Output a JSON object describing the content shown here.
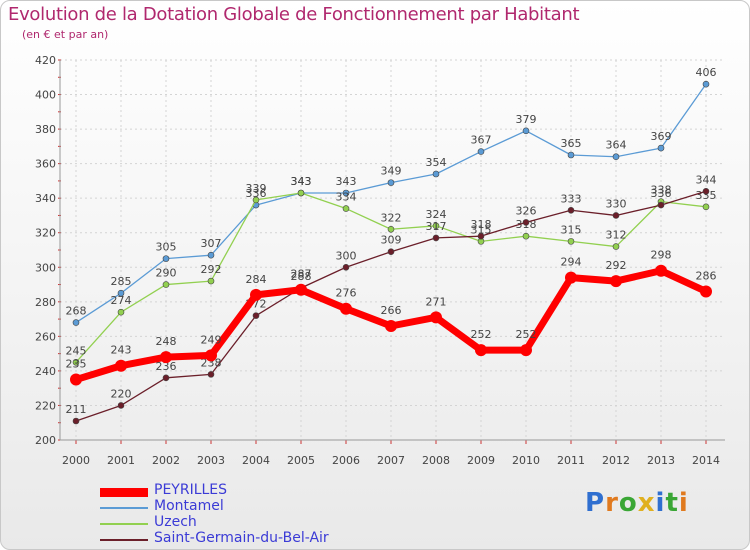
{
  "title": "Evolution de la Dotation Globale de Fonctionnement par Habitant",
  "subtitle": "(en € et par an)",
  "logo": "Proxiti",
  "chart_data": {
    "type": "line",
    "title": "Evolution de la Dotation Globale de Fonctionnement par Habitant",
    "subtitle": "(en € et par an)",
    "xlabel": "",
    "ylabel": "",
    "ylim": [
      200,
      420
    ],
    "yticks": [
      200,
      220,
      240,
      260,
      280,
      300,
      320,
      340,
      360,
      380,
      400,
      420
    ],
    "grid": true,
    "legend_position": "bottom-left",
    "x": [
      "2000",
      "2001",
      "2002",
      "2003",
      "2004",
      "2005",
      "2006",
      "2007",
      "2008",
      "2009",
      "2010",
      "2011",
      "2012",
      "2013",
      "2014"
    ],
    "series": [
      {
        "name": "Montamel",
        "color": "#5b9bd5",
        "values": [
          268,
          285,
          305,
          307,
          336,
          343,
          343,
          349,
          354,
          367,
          379,
          365,
          364,
          369,
          406
        ]
      },
      {
        "name": "Uzech",
        "color": "#92d050",
        "values": [
          245,
          274,
          290,
          292,
          339,
          343,
          334,
          322,
          324,
          315,
          318,
          315,
          312,
          338,
          335
        ]
      },
      {
        "name": "Saint-Germain-du-Bel-Air",
        "color": "#6b1f2a",
        "values": [
          211,
          220,
          236,
          238,
          272,
          288,
          300,
          309,
          317,
          318,
          326,
          333,
          330,
          336,
          344
        ]
      },
      {
        "name": "PEYRILLES",
        "color": "#ff0000",
        "values": [
          235,
          243,
          248,
          249,
          284,
          287,
          276,
          266,
          271,
          252,
          252,
          294,
          292,
          298,
          286
        ]
      }
    ]
  },
  "legend": [
    {
      "name": "PEYRILLES",
      "color": "#ff0000"
    },
    {
      "name": "Montamel",
      "color": "#5b9bd5"
    },
    {
      "name": "Uzech",
      "color": "#92d050"
    },
    {
      "name": "Saint-Germain-du-Bel-Air",
      "color": "#6b1f2a"
    }
  ]
}
